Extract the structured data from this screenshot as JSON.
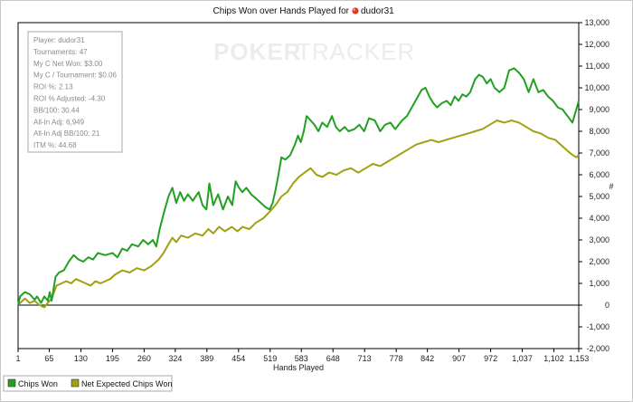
{
  "chart_data": {
    "type": "line",
    "title": "Chips Won over Hands Played for",
    "player_name": "dudor31",
    "watermark": {
      "part1": "POKER",
      "part2": "TRACKER"
    },
    "xlabel": "Hands Played",
    "ylabel": "#",
    "xlim": [
      1,
      1153
    ],
    "ylim": [
      -2000,
      13000
    ],
    "x_ticks": [
      "1",
      "65",
      "130",
      "195",
      "260",
      "324",
      "389",
      "454",
      "519",
      "583",
      "648",
      "713",
      "778",
      "842",
      "907",
      "972",
      "1,037",
      "1,102",
      "1,153"
    ],
    "y_ticks": [
      "-2,000",
      "-1,000",
      "0",
      "1,000",
      "2,000",
      "3,000",
      "4,000",
      "5,000",
      "6,000",
      "7,000",
      "8,000",
      "9,000",
      "10,000",
      "11,000",
      "12,000",
      "13,000"
    ],
    "y_tick_values": [
      -2000,
      -1000,
      0,
      1000,
      2000,
      3000,
      4000,
      5000,
      6000,
      7000,
      8000,
      9000,
      10000,
      11000,
      12000,
      13000
    ],
    "x_tick_values": [
      1,
      65,
      130,
      195,
      260,
      324,
      389,
      454,
      519,
      583,
      648,
      713,
      778,
      842,
      907,
      972,
      1037,
      1102,
      1153
    ],
    "grid": false,
    "legend": "bottom-left",
    "stats_box": [
      "Player: dudor31",
      "Tournaments: 47",
      "My C Net Won: $3.00",
      "My C / Tournament: $0.06",
      "ROI %: 2.13",
      "ROI % Adjusted: -4.30",
      "BB/100: 30.44",
      "All-In Adj: 6,949",
      "All-In Adj BB/100: 21",
      "ITM %: 44.68"
    ],
    "series": [
      {
        "name": "Chips Won",
        "color": "#22a022",
        "points": [
          [
            1,
            0
          ],
          [
            5,
            400
          ],
          [
            15,
            600
          ],
          [
            25,
            500
          ],
          [
            35,
            250
          ],
          [
            40,
            400
          ],
          [
            48,
            100
          ],
          [
            55,
            400
          ],
          [
            62,
            200
          ],
          [
            66,
            600
          ],
          [
            70,
            200
          ],
          [
            78,
            1300
          ],
          [
            85,
            1500
          ],
          [
            95,
            1600
          ],
          [
            105,
            2000
          ],
          [
            115,
            2300
          ],
          [
            125,
            2100
          ],
          [
            135,
            2000
          ],
          [
            145,
            2200
          ],
          [
            155,
            2100
          ],
          [
            165,
            2400
          ],
          [
            180,
            2300
          ],
          [
            195,
            2400
          ],
          [
            205,
            2200
          ],
          [
            215,
            2600
          ],
          [
            225,
            2500
          ],
          [
            235,
            2800
          ],
          [
            248,
            2700
          ],
          [
            258,
            3000
          ],
          [
            268,
            2800
          ],
          [
            278,
            3000
          ],
          [
            285,
            2700
          ],
          [
            292,
            3500
          ],
          [
            300,
            4200
          ],
          [
            310,
            5000
          ],
          [
            318,
            5400
          ],
          [
            326,
            4700
          ],
          [
            334,
            5200
          ],
          [
            342,
            4800
          ],
          [
            350,
            5100
          ],
          [
            360,
            4800
          ],
          [
            372,
            5200
          ],
          [
            380,
            4600
          ],
          [
            388,
            4400
          ],
          [
            394,
            5600
          ],
          [
            402,
            4600
          ],
          [
            412,
            5100
          ],
          [
            422,
            4400
          ],
          [
            432,
            5000
          ],
          [
            441,
            4600
          ],
          [
            448,
            5700
          ],
          [
            455,
            5400
          ],
          [
            462,
            5200
          ],
          [
            470,
            5400
          ],
          [
            480,
            5100
          ],
          [
            490,
            4900
          ],
          [
            500,
            4700
          ],
          [
            510,
            4500
          ],
          [
            518,
            4400
          ],
          [
            524,
            4700
          ],
          [
            530,
            5300
          ],
          [
            536,
            6000
          ],
          [
            542,
            6800
          ],
          [
            550,
            6700
          ],
          [
            560,
            6900
          ],
          [
            570,
            7400
          ],
          [
            576,
            7800
          ],
          [
            582,
            7500
          ],
          [
            588,
            8000
          ],
          [
            594,
            8700
          ],
          [
            602,
            8500
          ],
          [
            610,
            8300
          ],
          [
            618,
            8000
          ],
          [
            626,
            8400
          ],
          [
            636,
            8200
          ],
          [
            646,
            8700
          ],
          [
            654,
            8200
          ],
          [
            662,
            8000
          ],
          [
            672,
            8200
          ],
          [
            680,
            8000
          ],
          [
            692,
            8100
          ],
          [
            702,
            8300
          ],
          [
            712,
            8000
          ],
          [
            722,
            8600
          ],
          [
            734,
            8500
          ],
          [
            745,
            8000
          ],
          [
            755,
            8300
          ],
          [
            766,
            8400
          ],
          [
            776,
            8100
          ],
          [
            790,
            8500
          ],
          [
            800,
            8700
          ],
          [
            810,
            9100
          ],
          [
            820,
            9500
          ],
          [
            830,
            9900
          ],
          [
            838,
            10000
          ],
          [
            846,
            9600
          ],
          [
            854,
            9300
          ],
          [
            862,
            9100
          ],
          [
            872,
            9300
          ],
          [
            882,
            9400
          ],
          [
            890,
            9200
          ],
          [
            898,
            9600
          ],
          [
            906,
            9400
          ],
          [
            914,
            9700
          ],
          [
            922,
            9600
          ],
          [
            930,
            9800
          ],
          [
            940,
            10400
          ],
          [
            948,
            10600
          ],
          [
            956,
            10500
          ],
          [
            964,
            10200
          ],
          [
            972,
            10400
          ],
          [
            980,
            10000
          ],
          [
            990,
            9800
          ],
          [
            1000,
            10000
          ],
          [
            1010,
            10800
          ],
          [
            1020,
            10900
          ],
          [
            1030,
            10700
          ],
          [
            1040,
            10400
          ],
          [
            1050,
            9800
          ],
          [
            1060,
            10400
          ],
          [
            1070,
            9800
          ],
          [
            1080,
            9900
          ],
          [
            1090,
            9600
          ],
          [
            1100,
            9400
          ],
          [
            1110,
            9100
          ],
          [
            1120,
            9000
          ],
          [
            1130,
            8700
          ],
          [
            1140,
            8400
          ],
          [
            1148,
            9000
          ],
          [
            1153,
            9400
          ]
        ]
      },
      {
        "name": "Net Expected Chips Won",
        "color": "#a0a010",
        "points": [
          [
            1,
            0
          ],
          [
            5,
            100
          ],
          [
            15,
            300
          ],
          [
            25,
            100
          ],
          [
            35,
            200
          ],
          [
            45,
            0
          ],
          [
            55,
            -100
          ],
          [
            62,
            100
          ],
          [
            70,
            300
          ],
          [
            80,
            900
          ],
          [
            90,
            1000
          ],
          [
            100,
            1100
          ],
          [
            110,
            1000
          ],
          [
            120,
            1200
          ],
          [
            130,
            1100
          ],
          [
            140,
            1000
          ],
          [
            150,
            900
          ],
          [
            160,
            1100
          ],
          [
            170,
            1000
          ],
          [
            180,
            1100
          ],
          [
            190,
            1200
          ],
          [
            200,
            1400
          ],
          [
            215,
            1600
          ],
          [
            230,
            1500
          ],
          [
            245,
            1700
          ],
          [
            260,
            1600
          ],
          [
            275,
            1800
          ],
          [
            290,
            2100
          ],
          [
            300,
            2400
          ],
          [
            310,
            2800
          ],
          [
            318,
            3100
          ],
          [
            326,
            2900
          ],
          [
            336,
            3200
          ],
          [
            350,
            3100
          ],
          [
            365,
            3300
          ],
          [
            380,
            3200
          ],
          [
            392,
            3500
          ],
          [
            402,
            3300
          ],
          [
            414,
            3600
          ],
          [
            426,
            3400
          ],
          [
            440,
            3600
          ],
          [
            452,
            3400
          ],
          [
            462,
            3600
          ],
          [
            476,
            3500
          ],
          [
            490,
            3800
          ],
          [
            505,
            4000
          ],
          [
            518,
            4300
          ],
          [
            530,
            4600
          ],
          [
            542,
            5000
          ],
          [
            554,
            5200
          ],
          [
            566,
            5600
          ],
          [
            578,
            5900
          ],
          [
            590,
            6100
          ],
          [
            602,
            6300
          ],
          [
            614,
            6000
          ],
          [
            626,
            5900
          ],
          [
            640,
            6100
          ],
          [
            655,
            6000
          ],
          [
            670,
            6200
          ],
          [
            685,
            6300
          ],
          [
            700,
            6100
          ],
          [
            715,
            6300
          ],
          [
            730,
            6500
          ],
          [
            745,
            6400
          ],
          [
            760,
            6600
          ],
          [
            775,
            6800
          ],
          [
            790,
            7000
          ],
          [
            805,
            7200
          ],
          [
            820,
            7400
          ],
          [
            835,
            7500
          ],
          [
            850,
            7600
          ],
          [
            865,
            7500
          ],
          [
            880,
            7600
          ],
          [
            895,
            7700
          ],
          [
            910,
            7800
          ],
          [
            925,
            7900
          ],
          [
            940,
            8000
          ],
          [
            955,
            8100
          ],
          [
            970,
            8300
          ],
          [
            985,
            8500
          ],
          [
            1000,
            8400
          ],
          [
            1015,
            8500
          ],
          [
            1030,
            8400
          ],
          [
            1045,
            8200
          ],
          [
            1060,
            8000
          ],
          [
            1075,
            7900
          ],
          [
            1090,
            7700
          ],
          [
            1105,
            7600
          ],
          [
            1120,
            7300
          ],
          [
            1135,
            7000
          ],
          [
            1148,
            6800
          ],
          [
            1153,
            6900
          ]
        ]
      }
    ]
  }
}
